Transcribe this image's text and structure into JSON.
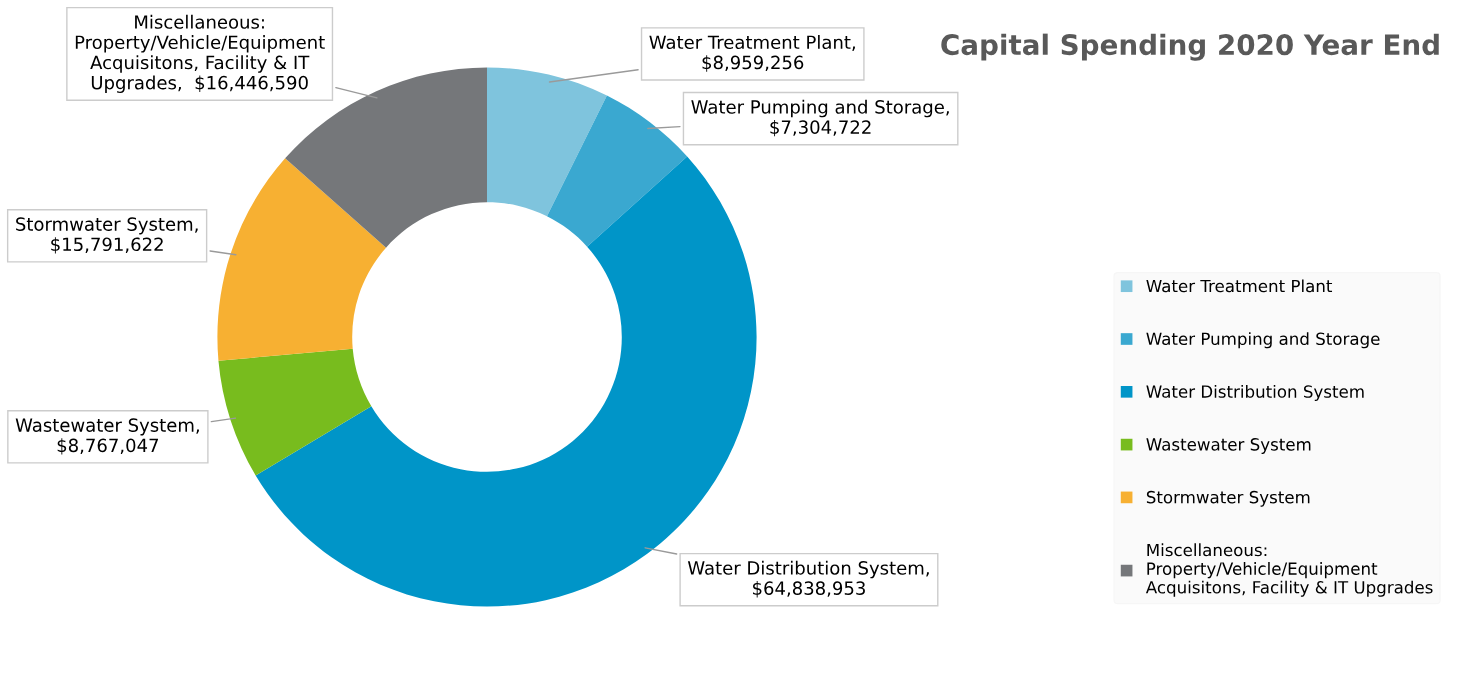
{
  "chart_data": {
    "type": "donut",
    "title": "Capital Spending 2020 Year End",
    "categories": [
      "Water Treatment Plant",
      "Water Pumping and Storage",
      "Water Distribution System",
      "Wastewater System",
      "Stormwater System",
      "Miscellaneous:\nProperty/Vehicle/Equipment\nAcquisitons, Facility & IT Upgrades"
    ],
    "values": [
      8959256,
      7304722,
      64838953,
      8767047,
      15791622,
      16446590
    ],
    "value_labels": [
      "Water Treatment Plant,\n$8,959,256",
      "Water Pumping and Storage,\n$7,304,722",
      "Water Distribution System,\n$64,838,953",
      "Wastewater System,\n$8,767,047",
      "Stormwater System,\n$15,791,622",
      "Miscellaneous:\nProperty/Vehicle/Equipment\nAcquisitons, Facility & IT\nUpgrades,  $16,446,590"
    ],
    "colors": [
      "#7fc4dd",
      "#3aa8d0",
      "#0095c8",
      "#78bc1e",
      "#f7b032",
      "#75777a"
    ],
    "legend": "right"
  }
}
